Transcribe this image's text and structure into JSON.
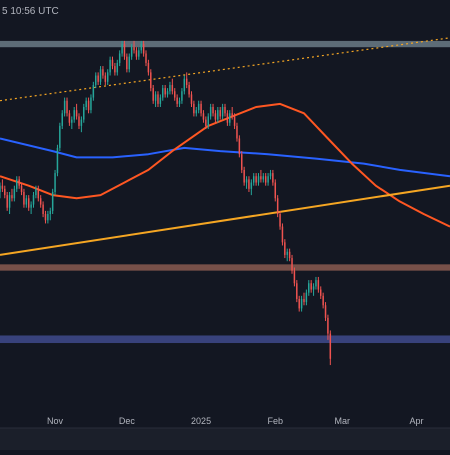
{
  "header": {
    "timestamp_text": "5 10:56 UTC"
  },
  "chart_data": {
    "type": "candlestick",
    "x_tick_labels": [
      "Nov",
      "Dec",
      "2025",
      "Feb",
      "Mar",
      "Apr"
    ],
    "x_tick_days": [
      61,
      91,
      122,
      153,
      181,
      212
    ],
    "x_range_days": [
      38,
      226
    ],
    "grid": false,
    "zones": [
      {
        "name": "upper-resistance-zone",
        "low": 100.5,
        "high": 101.5,
        "color": "#6b7b86"
      },
      {
        "name": "middle-support-zone",
        "low": 65.0,
        "high": 66.0,
        "color": "#8a5a50"
      },
      {
        "name": "lower-support-zone",
        "low": 53.5,
        "high": 54.7,
        "color": "#3f4a8c"
      }
    ],
    "lines": [
      {
        "name": "ma-blue",
        "color": "#2962ff",
        "points": [
          [
            38,
            86.0
          ],
          [
            60,
            84.0
          ],
          [
            70,
            83.0
          ],
          [
            85,
            83.0
          ],
          [
            100,
            83.5
          ],
          [
            115,
            84.5
          ],
          [
            130,
            84.0
          ],
          [
            150,
            83.5
          ],
          [
            170,
            82.8
          ],
          [
            190,
            82.0
          ],
          [
            205,
            81.0
          ],
          [
            226,
            80.0
          ]
        ]
      },
      {
        "name": "ma-orange",
        "color": "#ff5722",
        "points": [
          [
            38,
            80.0
          ],
          [
            50,
            78.5
          ],
          [
            60,
            77.0
          ],
          [
            70,
            76.5
          ],
          [
            80,
            77.0
          ],
          [
            90,
            79.0
          ],
          [
            100,
            81.0
          ],
          [
            110,
            84.0
          ],
          [
            125,
            88.0
          ],
          [
            135,
            89.5
          ],
          [
            145,
            91.0
          ],
          [
            155,
            91.5
          ],
          [
            165,
            90.0
          ],
          [
            175,
            86.0
          ],
          [
            185,
            82.0
          ],
          [
            195,
            78.5
          ],
          [
            205,
            76.0
          ],
          [
            215,
            74.0
          ],
          [
            226,
            72.0
          ]
        ]
      },
      {
        "name": "rising-trendline",
        "color": "#f5a623",
        "points": [
          [
            38,
            67.5
          ],
          [
            226,
            78.5
          ]
        ]
      },
      {
        "name": "dotted-trendline",
        "color": "#f5a623",
        "dashed": true,
        "points": [
          [
            38,
            92.0
          ],
          [
            226,
            102.0
          ]
        ]
      }
    ],
    "candles": [
      [
        38,
        77.5,
        79.0,
        76.5,
        78.5
      ],
      [
        39,
        78.5,
        79.5,
        77.5,
        78.0
      ],
      [
        40,
        78.0,
        78.5,
        76.5,
        77.0
      ],
      [
        41,
        77.0,
        77.5,
        74.5,
        75.0
      ],
      [
        42,
        75.0,
        77.5,
        74.0,
        77.0
      ],
      [
        43,
        77.0,
        78.0,
        76.0,
        76.5
      ],
      [
        44,
        76.5,
        78.5,
        76.0,
        78.0
      ],
      [
        45,
        78.0,
        80.0,
        77.5,
        79.5
      ],
      [
        46,
        79.5,
        80.0,
        78.0,
        78.5
      ],
      [
        47,
        78.5,
        79.0,
        77.0,
        77.5
      ],
      [
        48,
        77.5,
        78.0,
        75.0,
        75.5
      ],
      [
        49,
        75.5,
        77.0,
        75.0,
        76.5
      ],
      [
        50,
        76.5,
        77.0,
        74.5,
        75.0
      ],
      [
        51,
        75.0,
        76.0,
        74.0,
        75.5
      ],
      [
        52,
        75.5,
        77.5,
        75.0,
        77.0
      ],
      [
        53,
        77.0,
        78.5,
        76.5,
        78.0
      ],
      [
        54,
        78.0,
        78.5,
        76.0,
        76.5
      ],
      [
        55,
        76.5,
        77.0,
        75.0,
        75.5
      ],
      [
        56,
        75.5,
        76.0,
        73.5,
        74.0
      ],
      [
        57,
        74.0,
        74.5,
        72.5,
        73.0
      ],
      [
        58,
        73.0,
        74.5,
        72.5,
        74.0
      ],
      [
        59,
        74.0,
        75.0,
        73.0,
        74.5
      ],
      [
        60,
        74.5,
        78.0,
        74.0,
        77.5
      ],
      [
        61,
        77.5,
        81.0,
        77.0,
        80.5
      ],
      [
        62,
        80.5,
        85.0,
        80.0,
        84.5
      ],
      [
        63,
        84.5,
        88.5,
        84.0,
        88.0
      ],
      [
        64,
        88.0,
        90.5,
        87.5,
        90.0
      ],
      [
        65,
        90.0,
        92.5,
        89.5,
        92.0
      ],
      [
        66,
        92.0,
        92.5,
        89.5,
        90.0
      ],
      [
        67,
        90.0,
        90.5,
        88.0,
        88.5
      ],
      [
        68,
        88.5,
        89.5,
        87.5,
        89.0
      ],
      [
        69,
        89.0,
        91.0,
        88.5,
        90.5
      ],
      [
        70,
        90.5,
        91.5,
        89.0,
        89.5
      ],
      [
        71,
        89.5,
        90.0,
        87.5,
        88.0
      ],
      [
        72,
        88.0,
        89.5,
        87.0,
        89.0
      ],
      [
        73,
        89.0,
        91.5,
        88.5,
        91.0
      ],
      [
        74,
        91.0,
        92.5,
        90.5,
        92.0
      ],
      [
        75,
        92.0,
        92.5,
        90.0,
        90.5
      ],
      [
        76,
        90.5,
        93.0,
        90.0,
        92.5
      ],
      [
        77,
        92.5,
        95.0,
        92.0,
        94.5
      ],
      [
        78,
        94.5,
        96.5,
        94.0,
        96.0
      ],
      [
        79,
        96.0,
        96.5,
        94.5,
        95.0
      ],
      [
        80,
        95.0,
        97.5,
        94.5,
        97.0
      ],
      [
        81,
        97.0,
        97.5,
        95.5,
        96.0
      ],
      [
        82,
        96.0,
        96.5,
        94.5,
        95.0
      ],
      [
        83,
        95.0,
        97.0,
        94.5,
        96.5
      ],
      [
        84,
        96.5,
        99.0,
        96.0,
        98.5
      ],
      [
        85,
        98.5,
        99.0,
        97.0,
        97.5
      ],
      [
        86,
        97.5,
        98.0,
        96.0,
        96.5
      ],
      [
        87,
        96.5,
        98.5,
        96.0,
        98.0
      ],
      [
        88,
        98.0,
        100.0,
        97.5,
        99.5
      ],
      [
        89,
        99.5,
        101.5,
        99.0,
        101.0
      ],
      [
        90,
        101.0,
        101.5,
        98.5,
        99.0
      ],
      [
        91,
        99.0,
        99.5,
        96.5,
        97.0
      ],
      [
        92,
        97.0,
        99.5,
        96.5,
        99.0
      ],
      [
        93,
        99.0,
        101.0,
        98.5,
        100.5
      ],
      [
        94,
        100.5,
        101.5,
        99.5,
        100.0
      ],
      [
        95,
        100.0,
        100.5,
        98.5,
        99.0
      ],
      [
        96,
        99.0,
        100.5,
        98.5,
        100.0
      ],
      [
        97,
        100.0,
        101.5,
        99.5,
        101.0
      ],
      [
        98,
        101.0,
        101.5,
        99.0,
        99.5
      ],
      [
        99,
        99.5,
        100.0,
        97.5,
        98.0
      ],
      [
        100,
        98.0,
        98.5,
        96.0,
        96.5
      ],
      [
        101,
        96.5,
        97.0,
        93.5,
        94.0
      ],
      [
        102,
        94.0,
        94.5,
        91.5,
        92.0
      ],
      [
        103,
        92.0,
        93.5,
        91.0,
        93.0
      ],
      [
        104,
        93.0,
        93.5,
        91.0,
        91.5
      ],
      [
        105,
        91.5,
        93.0,
        91.0,
        92.5
      ],
      [
        106,
        92.5,
        94.5,
        92.0,
        94.0
      ],
      [
        107,
        94.0,
        94.5,
        92.5,
        93.0
      ],
      [
        108,
        93.0,
        94.0,
        92.5,
        93.5
      ],
      [
        109,
        93.5,
        95.0,
        93.0,
        94.5
      ],
      [
        110,
        94.5,
        95.5,
        93.0,
        93.5
      ],
      [
        111,
        93.5,
        94.0,
        92.0,
        92.5
      ],
      [
        112,
        92.5,
        93.0,
        91.0,
        91.5
      ],
      [
        113,
        91.5,
        92.5,
        91.0,
        92.0
      ],
      [
        114,
        92.0,
        94.0,
        91.5,
        93.5
      ],
      [
        115,
        93.5,
        96.0,
        93.0,
        95.5
      ],
      [
        116,
        95.5,
        96.5,
        94.0,
        94.5
      ],
      [
        117,
        94.5,
        95.0,
        92.5,
        93.0
      ],
      [
        118,
        93.0,
        93.5,
        91.0,
        91.5
      ],
      [
        119,
        91.5,
        92.0,
        89.5,
        90.0
      ],
      [
        120,
        90.0,
        91.0,
        89.5,
        90.5
      ],
      [
        121,
        90.5,
        92.0,
        90.0,
        91.5
      ],
      [
        122,
        91.5,
        92.0,
        89.5,
        90.0
      ],
      [
        123,
        90.0,
        90.5,
        88.5,
        89.0
      ],
      [
        124,
        89.0,
        89.5,
        87.5,
        88.0
      ],
      [
        125,
        88.0,
        90.0,
        87.5,
        89.5
      ],
      [
        126,
        89.5,
        91.5,
        89.0,
        91.0
      ],
      [
        127,
        91.0,
        91.5,
        89.5,
        90.0
      ],
      [
        128,
        90.0,
        90.5,
        88.5,
        89.0
      ],
      [
        129,
        89.0,
        91.0,
        88.5,
        90.5
      ],
      [
        130,
        90.5,
        91.0,
        89.0,
        89.5
      ],
      [
        131,
        89.5,
        91.5,
        89.0,
        91.0
      ],
      [
        132,
        91.0,
        91.5,
        89.5,
        90.0
      ],
      [
        133,
        90.0,
        90.5,
        88.0,
        88.5
      ],
      [
        134,
        88.5,
        90.5,
        88.0,
        90.0
      ],
      [
        135,
        90.0,
        91.0,
        89.0,
        89.5
      ],
      [
        136,
        89.5,
        90.0,
        87.5,
        88.0
      ],
      [
        137,
        88.0,
        88.5,
        85.5,
        86.0
      ],
      [
        138,
        86.0,
        86.5,
        83.0,
        83.5
      ],
      [
        139,
        83.5,
        84.0,
        80.5,
        81.0
      ],
      [
        140,
        81.0,
        81.5,
        78.5,
        79.0
      ],
      [
        141,
        79.0,
        80.0,
        78.0,
        79.5
      ],
      [
        142,
        79.5,
        80.0,
        77.5,
        78.0
      ],
      [
        143,
        78.0,
        79.5,
        77.0,
        79.0
      ],
      [
        144,
        79.0,
        80.5,
        78.5,
        80.0
      ],
      [
        145,
        80.0,
        80.5,
        78.5,
        79.0
      ],
      [
        146,
        79.0,
        80.5,
        78.5,
        80.0
      ],
      [
        147,
        80.0,
        81.0,
        79.0,
        79.5
      ],
      [
        148,
        79.5,
        80.5,
        79.0,
        80.0
      ],
      [
        149,
        80.0,
        80.5,
        78.5,
        79.0
      ],
      [
        150,
        79.0,
        80.5,
        78.5,
        80.0
      ],
      [
        151,
        80.0,
        81.0,
        79.5,
        80.5
      ],
      [
        152,
        80.5,
        81.0,
        78.5,
        79.0
      ],
      [
        153,
        79.0,
        79.5,
        76.0,
        76.5
      ],
      [
        154,
        76.5,
        77.0,
        73.5,
        74.0
      ],
      [
        155,
        74.0,
        74.5,
        71.5,
        72.0
      ],
      [
        156,
        72.0,
        72.5,
        69.0,
        69.5
      ],
      [
        157,
        69.5,
        70.0,
        67.0,
        67.5
      ],
      [
        158,
        67.5,
        68.5,
        66.5,
        68.0
      ],
      [
        159,
        68.0,
        68.5,
        66.5,
        67.0
      ],
      [
        160,
        67.0,
        67.5,
        64.5,
        65.0
      ],
      [
        161,
        65.0,
        65.5,
        62.5,
        63.0
      ],
      [
        162,
        63.0,
        63.5,
        60.0,
        60.5
      ],
      [
        163,
        60.5,
        61.0,
        58.5,
        59.0
      ],
      [
        164,
        59.0,
        61.0,
        58.5,
        60.5
      ],
      [
        165,
        60.5,
        61.5,
        59.5,
        60.0
      ],
      [
        166,
        60.0,
        62.0,
        59.5,
        61.5
      ],
      [
        167,
        61.5,
        63.5,
        61.0,
        63.0
      ],
      [
        168,
        63.0,
        63.5,
        61.5,
        62.0
      ],
      [
        169,
        62.0,
        63.0,
        61.0,
        62.5
      ],
      [
        170,
        62.5,
        64.0,
        62.0,
        63.5
      ],
      [
        171,
        63.5,
        64.0,
        61.5,
        62.0
      ],
      [
        172,
        62.0,
        62.5,
        60.5,
        61.0
      ],
      [
        173,
        61.0,
        61.5,
        59.0,
        59.5
      ],
      [
        174,
        59.5,
        60.0,
        57.0,
        57.5
      ],
      [
        175,
        57.5,
        58.0,
        54.0,
        55.0
      ],
      [
        176,
        55.0,
        55.5,
        50.0,
        51.0
      ]
    ]
  }
}
